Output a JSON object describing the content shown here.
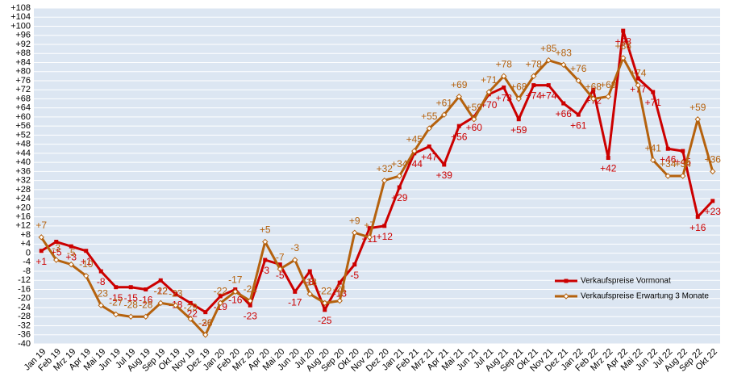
{
  "chart_data": {
    "type": "line",
    "categories": [
      "Jan 19",
      "Feb 19",
      "Mrz 19",
      "Apr 19",
      "Mai 19",
      "Jun 19",
      "Jul 19",
      "Aug 19",
      "Sep 19",
      "Okt 19",
      "Nov 19",
      "Dez 19",
      "Jan 20",
      "Feb 20",
      "Mrz 20",
      "Apr 20",
      "Mai 20",
      "Jun 20",
      "Jul 20",
      "Aug 20",
      "Sep 20",
      "Okt 20",
      "Nov 20",
      "Dez 20",
      "Jan 21",
      "Feb 21",
      "Mrz 21",
      "Apr 21",
      "Mai 21",
      "Jun 21",
      "Jul 21",
      "Aug 21",
      "Sep 21",
      "Okt 21",
      "Nov 21",
      "Dez 21",
      "Jan 22",
      "Feb 22",
      "Mrz 22",
      "Apr 22",
      "Mai 22",
      "Jun 22",
      "Jul 22",
      "Aug 22",
      "Sep 22",
      "Okt 22"
    ],
    "series": [
      {
        "name": "Verkaufspreise Vormonat",
        "color": "#cc0000",
        "marker": "square",
        "values": [
          1,
          5,
          3,
          1,
          -8,
          -15,
          -15,
          -16,
          -12,
          -18,
          -22,
          -26,
          -19,
          -16,
          -23,
          -3,
          -5,
          -17,
          -8,
          -25,
          -13,
          -5,
          11,
          12,
          29,
          44,
          47,
          39,
          56,
          60,
          70,
          73,
          59,
          74,
          74,
          66,
          61,
          72,
          42,
          98,
          77,
          71,
          46,
          45,
          16,
          23
        ],
        "value_labels": [
          "+1",
          "+5",
          "+3",
          "+1",
          "-8",
          "-15",
          "-15",
          "-16",
          "-12",
          "-18",
          "-22",
          "-26",
          "-19",
          "-16",
          "-23",
          "-3",
          "-5",
          "-17",
          "-8",
          "-25",
          "-13",
          "-5",
          "+11",
          "+12",
          "+29",
          "+44",
          "+47",
          "+39",
          "+56",
          "+60",
          "+70",
          "+73",
          "+59",
          "+74",
          "+74",
          "+66",
          "+61",
          "+72",
          "+42",
          "+98",
          "+77",
          "+71",
          "+46",
          "+45",
          "+16",
          "+23"
        ]
      },
      {
        "name": "Verkaufspreise Erwartung 3 Monate",
        "color": "#b5620e",
        "marker": "diamond",
        "values": [
          7,
          -3,
          -5,
          -10,
          -23,
          -27,
          -28,
          -28,
          -22,
          -23,
          -29,
          -36,
          -22,
          -17,
          -21,
          5,
          -7,
          -3,
          -18,
          -22,
          -21,
          9,
          7,
          32,
          34,
          45,
          55,
          61,
          69,
          59,
          71,
          78,
          68,
          78,
          85,
          83,
          76,
          68,
          69,
          86,
          74,
          41,
          34,
          34,
          59,
          36
        ],
        "value_labels": [
          "+7",
          "-3",
          "-5",
          "-10",
          "-23",
          "-27",
          "-28",
          "-28",
          "-22",
          "-23",
          "-29",
          "-36",
          "-22",
          "-17",
          "-21",
          "+5",
          "-7",
          "-3",
          "-18",
          "-22",
          "-21",
          "+9",
          "+7",
          "+32",
          "+34",
          "+45",
          "+55",
          "+61",
          "+69",
          "+59",
          "+71",
          "+78",
          "+68",
          "+78",
          "+85",
          "+83",
          "+76",
          "+68",
          "+69",
          "+86",
          "+74",
          "+41",
          "+34",
          "+34",
          "+59",
          "+36"
        ]
      }
    ],
    "ylim": [
      -40,
      108
    ],
    "yticks": [
      {
        "value": -40,
        "label": "-40"
      },
      {
        "value": -36,
        "label": "-36"
      },
      {
        "value": -32,
        "label": "-32"
      },
      {
        "value": -28,
        "label": "-28"
      },
      {
        "value": -24,
        "label": "-24"
      },
      {
        "value": -20,
        "label": "-20"
      },
      {
        "value": -16,
        "label": "-16"
      },
      {
        "value": -12,
        "label": "-12"
      },
      {
        "value": -8,
        "label": "-8"
      },
      {
        "value": -4,
        "label": "-4"
      },
      0,
      {
        "value": 4,
        "label": "+4"
      },
      {
        "value": 8,
        "label": "+8"
      },
      {
        "value": 12,
        "label": "+12"
      },
      {
        "value": 16,
        "label": "+16"
      },
      {
        "value": 20,
        "label": "+20"
      },
      {
        "value": 24,
        "label": "+24"
      },
      {
        "value": 28,
        "label": "+28"
      },
      {
        "value": 32,
        "label": "+32"
      },
      {
        "value": 36,
        "label": "+36"
      },
      {
        "value": 40,
        "label": "+40"
      },
      {
        "value": 44,
        "label": "+44"
      },
      {
        "value": 48,
        "label": "+48"
      },
      {
        "value": 52,
        "label": "+52"
      },
      {
        "value": 56,
        "label": "+56"
      },
      {
        "value": 60,
        "label": "+60"
      },
      {
        "value": 64,
        "label": "+64"
      },
      {
        "value": 68,
        "label": "+68"
      },
      {
        "value": 72,
        "label": "+72"
      },
      {
        "value": 76,
        "label": "+76"
      },
      {
        "value": 80,
        "label": "+80"
      },
      {
        "value": 84,
        "label": "+84"
      },
      {
        "value": 88,
        "label": "+88"
      },
      {
        "value": 92,
        "label": "+92"
      },
      {
        "value": 96,
        "label": "+96"
      },
      {
        "value": 100,
        "label": "+100"
      },
      {
        "value": 104,
        "label": "+104"
      },
      {
        "value": 108,
        "label": "+108"
      }
    ],
    "grid": true,
    "legend": "right"
  }
}
